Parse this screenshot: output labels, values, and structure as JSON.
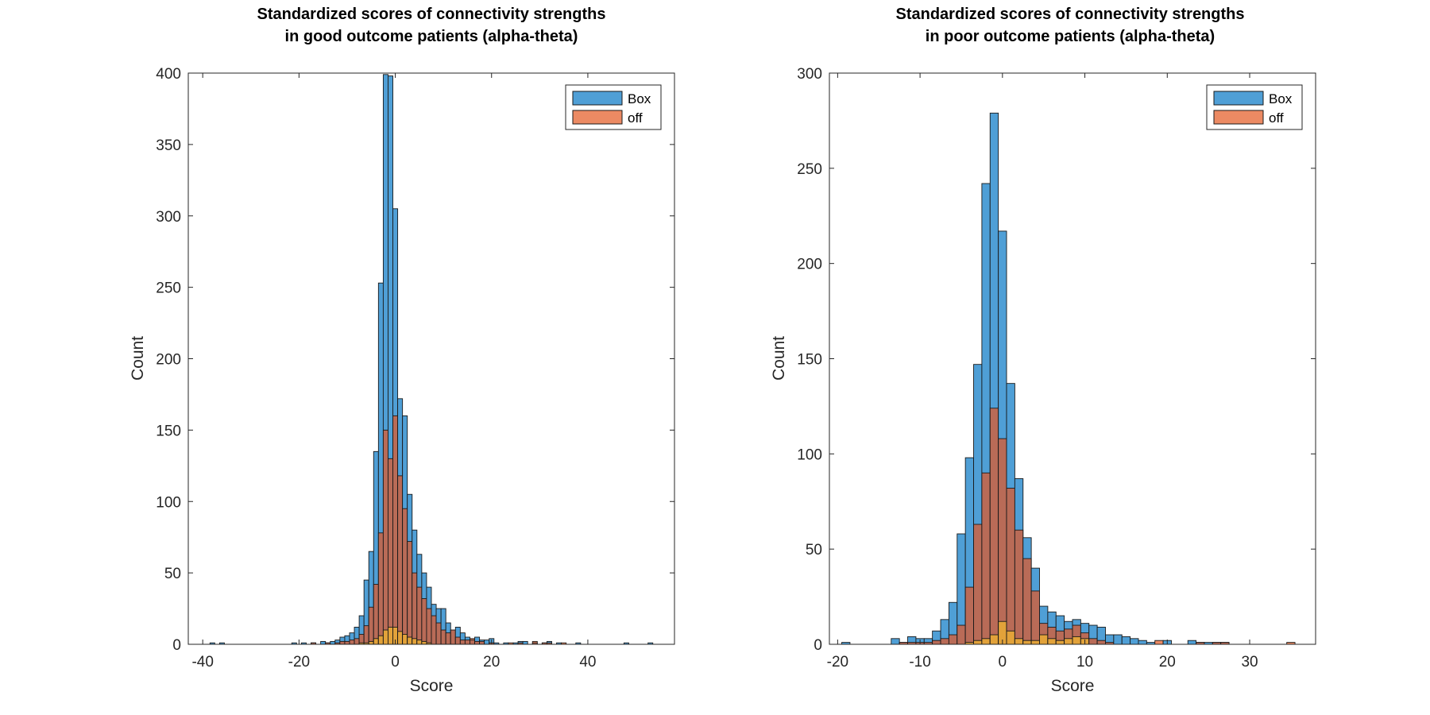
{
  "colors": {
    "box": "#4f9fd6",
    "off": "#ec8a63",
    "overlap_box_off": "#b96b57",
    "third_layer": "#e2a23a",
    "bar_edge": "#1a1a1a"
  },
  "chart_data": [
    {
      "type": "bar",
      "title_lines": [
        "Standardized scores of connectivity strengths",
        "in good outcome patients (alpha-theta)"
      ],
      "xlabel": "Score",
      "ylabel": "Count",
      "xlim": [
        -43,
        58
      ],
      "ylim": [
        0,
        400
      ],
      "xticks": [
        -40,
        -20,
        0,
        20,
        40
      ],
      "yticks": [
        0,
        50,
        100,
        150,
        200,
        250,
        300,
        350,
        400
      ],
      "bin_width": 1,
      "legend": {
        "position": "top-right",
        "entries": [
          "Box",
          "off"
        ]
      },
      "series": [
        {
          "name": "Box",
          "x": [
            -38,
            -36,
            -21,
            -19,
            -17,
            -15,
            -14,
            -13,
            -12,
            -11,
            -10,
            -9,
            -8,
            -7,
            -6,
            -5,
            -4,
            -3,
            -2,
            -1,
            0,
            1,
            2,
            3,
            4,
            5,
            6,
            7,
            8,
            9,
            10,
            11,
            12,
            13,
            14,
            15,
            16,
            17,
            18,
            19,
            20,
            21,
            23,
            25,
            26,
            27,
            29,
            31,
            32,
            34,
            38,
            48,
            53
          ],
          "values": [
            1,
            1,
            1,
            1,
            1,
            2,
            1,
            2,
            3,
            5,
            6,
            8,
            12,
            20,
            45,
            65,
            135,
            253,
            399,
            398,
            305,
            172,
            160,
            105,
            80,
            63,
            50,
            40,
            28,
            25,
            25,
            15,
            10,
            12,
            8,
            5,
            3,
            5,
            3,
            3,
            4,
            1,
            1,
            1,
            2,
            2,
            1,
            1,
            2,
            1,
            1,
            1,
            1
          ]
        },
        {
          "name": "off",
          "x": [
            -17,
            -14,
            -12,
            -11,
            -10,
            -9,
            -8,
            -7,
            -6,
            -5,
            -4,
            -3,
            -2,
            -1,
            0,
            1,
            2,
            3,
            4,
            5,
            6,
            7,
            8,
            9,
            10,
            11,
            12,
            13,
            14,
            15,
            16,
            17,
            18,
            20,
            24,
            26,
            29,
            31,
            32,
            35
          ],
          "values": [
            1,
            1,
            1,
            2,
            2,
            3,
            4,
            7,
            13,
            26,
            42,
            78,
            150,
            130,
            160,
            118,
            95,
            72,
            50,
            40,
            32,
            25,
            20,
            15,
            10,
            8,
            10,
            5,
            3,
            3,
            4,
            2,
            2,
            1,
            1,
            1,
            2,
            1,
            1,
            1
          ]
        },
        {
          "name": "",
          "x": [
            -7,
            -6,
            -5,
            -4,
            -3,
            -2,
            -1,
            0,
            1,
            2,
            3,
            4,
            5,
            6,
            7
          ],
          "values": [
            1,
            1,
            2,
            4,
            6,
            10,
            12,
            12,
            9,
            7,
            5,
            4,
            3,
            2,
            1
          ]
        }
      ]
    },
    {
      "type": "bar",
      "title_lines": [
        "Standardized scores of connectivity strengths",
        "in poor outcome patients (alpha-theta)"
      ],
      "xlabel": "Score",
      "ylabel": "Count",
      "xlim": [
        -21,
        38
      ],
      "ylim": [
        0,
        300
      ],
      "xticks": [
        -20,
        -10,
        0,
        10,
        20,
        30
      ],
      "yticks": [
        0,
        50,
        100,
        150,
        200,
        250,
        300
      ],
      "bin_width": 1,
      "legend": {
        "position": "top-right",
        "entries": [
          "Box",
          "off"
        ]
      },
      "series": [
        {
          "name": "Box",
          "x": [
            -19,
            -13,
            -12,
            -11,
            -10,
            -9,
            -8,
            -7,
            -6,
            -5,
            -4,
            -3,
            -2,
            -1,
            0,
            1,
            2,
            3,
            4,
            5,
            6,
            7,
            8,
            9,
            10,
            11,
            12,
            13,
            14,
            15,
            16,
            17,
            18,
            19,
            20,
            23,
            24,
            25,
            26,
            27
          ],
          "values": [
            1,
            3,
            1,
            4,
            3,
            3,
            7,
            13,
            22,
            58,
            98,
            147,
            242,
            279,
            217,
            137,
            87,
            56,
            40,
            20,
            17,
            15,
            12,
            13,
            11,
            10,
            9,
            5,
            5,
            4,
            3,
            2,
            1,
            0,
            2,
            2,
            1,
            1,
            1,
            1
          ]
        },
        {
          "name": "off",
          "x": [
            -12,
            -11,
            -10,
            -9,
            -8,
            -7,
            -6,
            -5,
            -4,
            -3,
            -2,
            -1,
            0,
            1,
            2,
            3,
            4,
            5,
            6,
            7,
            8,
            9,
            10,
            11,
            12,
            13,
            19,
            24,
            26,
            27,
            35
          ],
          "values": [
            1,
            1,
            1,
            1,
            2,
            3,
            5,
            10,
            30,
            63,
            90,
            124,
            108,
            82,
            60,
            45,
            28,
            11,
            9,
            7,
            8,
            10,
            6,
            3,
            2,
            1,
            2,
            1,
            1,
            1,
            1
          ]
        },
        {
          "name": "",
          "x": [
            -4,
            -3,
            -2,
            -1,
            0,
            1,
            2,
            3,
            4,
            5,
            6,
            7,
            8,
            9,
            10
          ],
          "values": [
            1,
            2,
            3,
            5,
            12,
            7,
            3,
            2,
            2,
            5,
            3,
            2,
            3,
            4,
            3
          ]
        }
      ]
    }
  ]
}
